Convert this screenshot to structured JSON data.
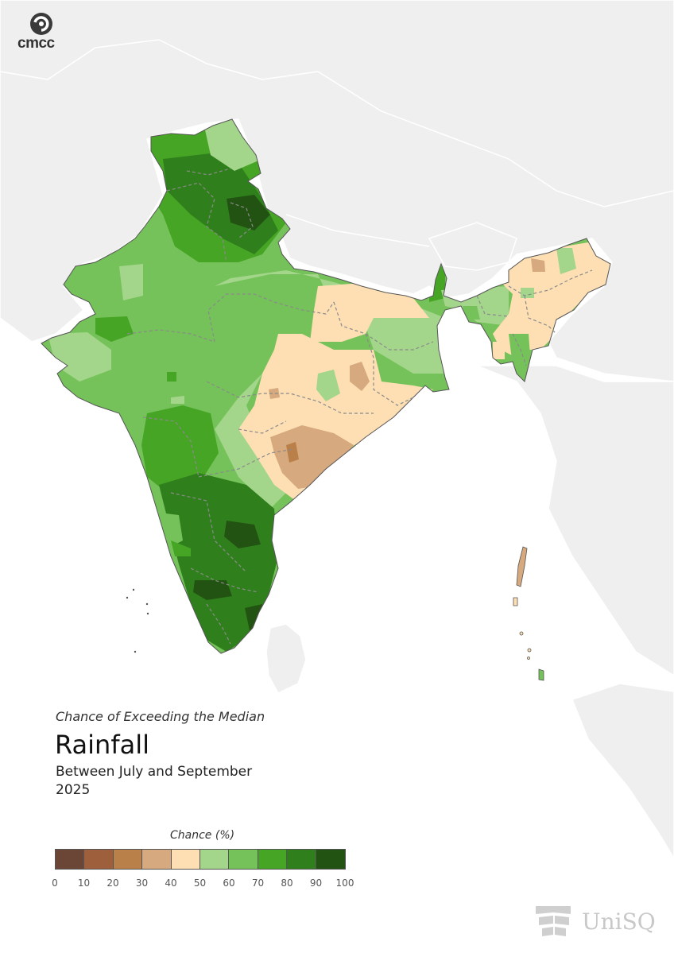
{
  "header": {
    "logo_text": "cmcc"
  },
  "map": {
    "subtitle": "Chance of Exceeding the Median",
    "title": "Rainfall",
    "period": "Between July and September",
    "year": "2025"
  },
  "legend": {
    "title": "Chance (%)",
    "bins": [
      {
        "from": 0,
        "to": 10,
        "color": "#6b4535"
      },
      {
        "from": 10,
        "to": 20,
        "color": "#9e5f3d"
      },
      {
        "from": 20,
        "to": 30,
        "color": "#b98149"
      },
      {
        "from": 30,
        "to": 40,
        "color": "#d6a97e"
      },
      {
        "from": 40,
        "to": 50,
        "color": "#fddfb3"
      },
      {
        "from": 50,
        "to": 60,
        "color": "#a3d58b"
      },
      {
        "from": 60,
        "to": 70,
        "color": "#74c259"
      },
      {
        "from": 70,
        "to": 80,
        "color": "#46a524"
      },
      {
        "from": 80,
        "to": 90,
        "color": "#2f801c"
      },
      {
        "from": 90,
        "to": 100,
        "color": "#235312"
      }
    ],
    "ticks": [
      "0",
      "10",
      "20",
      "30",
      "40",
      "50",
      "60",
      "70",
      "80",
      "90",
      "100"
    ]
  },
  "footer": {
    "logo_text": "UniSQ"
  }
}
